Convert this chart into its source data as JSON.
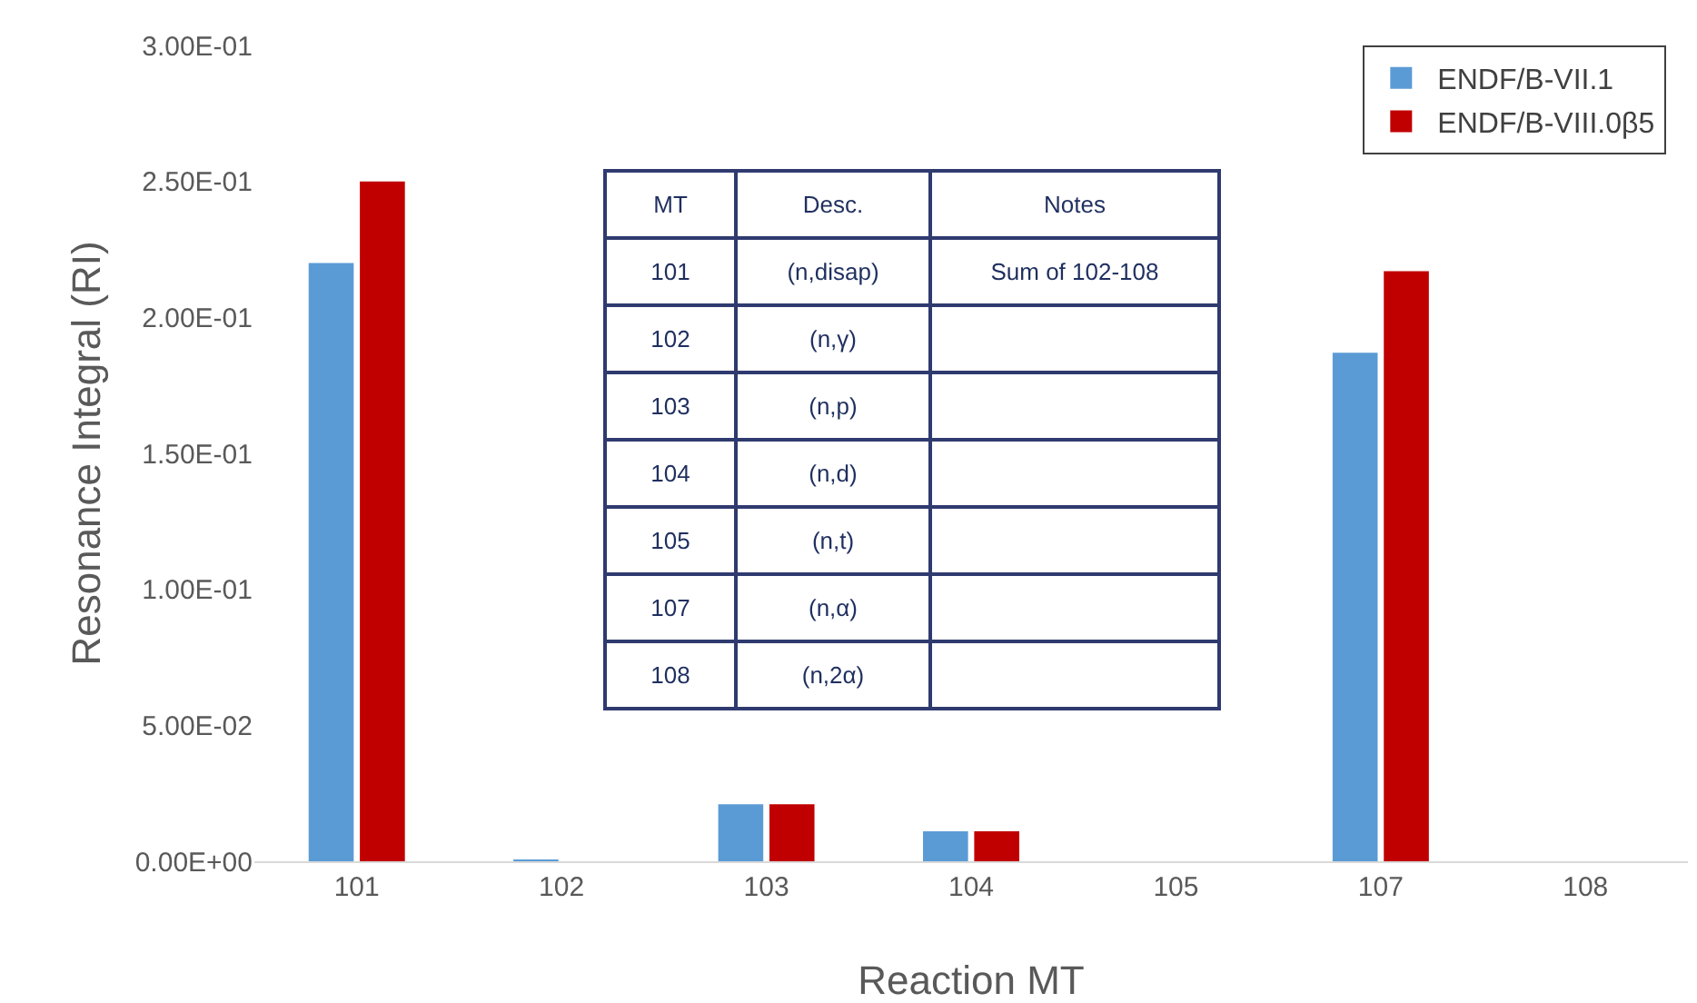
{
  "chart_data": {
    "type": "bar",
    "xlabel": "Reaction MT",
    "ylabel": "Resonance Integral (RI)",
    "categories": [
      "101",
      "102",
      "103",
      "104",
      "105",
      "107",
      "108"
    ],
    "series": [
      {
        "name": "ENDF/B-VII.1",
        "color": "#5b9bd5",
        "values": [
          0.22,
          0.0005,
          0.021,
          0.011,
          0,
          0.187,
          0
        ]
      },
      {
        "name": "ENDF/B-VIII.0β5",
        "color": "#c00000",
        "values": [
          0.25,
          0,
          0.021,
          0.011,
          0,
          0.217,
          0
        ]
      }
    ],
    "ylim": [
      0,
      0.3
    ],
    "yticks": [
      {
        "value": 0,
        "label": "0.00E+00"
      },
      {
        "value": 0.05,
        "label": "5.00E-02"
      },
      {
        "value": 0.1,
        "label": "1.00E-01"
      },
      {
        "value": 0.15,
        "label": "1.50E-01"
      },
      {
        "value": 0.2,
        "label": "2.00E-01"
      },
      {
        "value": 0.25,
        "label": "2.50E-01"
      },
      {
        "value": 0.3,
        "label": "3.00E-01"
      }
    ],
    "grid": false,
    "legend": "top right",
    "annotations": [
      "MT",
      "Desc.",
      "Notes",
      "101",
      "(n,disap)",
      "Sum of 102-108",
      "102",
      "(n,γ)",
      "103",
      "(n,p)",
      "104",
      "(n,d)",
      "105",
      "(n,t)",
      "107",
      "(n,α)",
      "108",
      "(n,2α)"
    ]
  }
}
